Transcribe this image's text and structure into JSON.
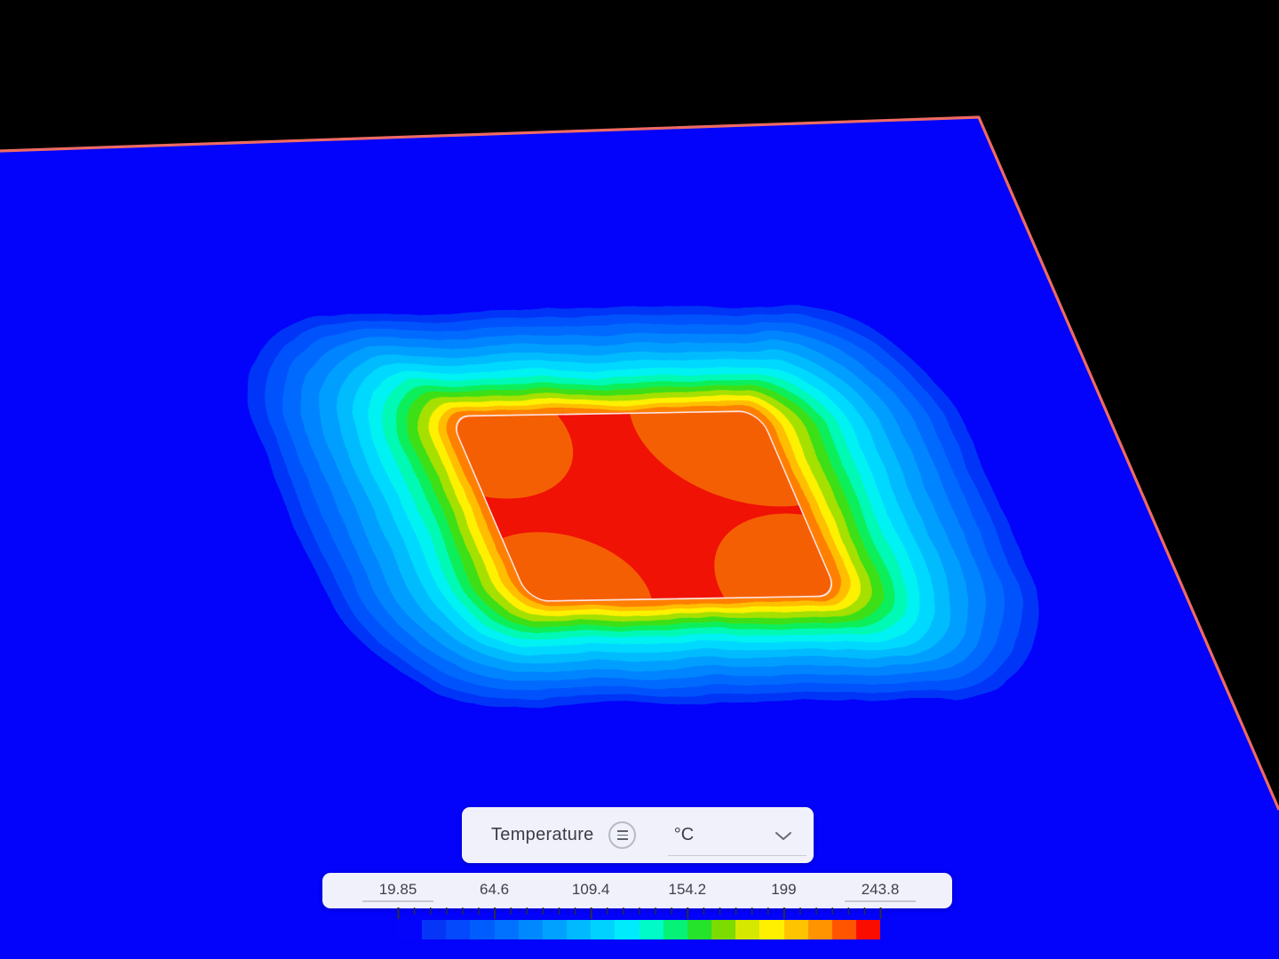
{
  "scene": {
    "background": "#000000",
    "plate_color": "#0302fa",
    "edge_color": "#ee6b63"
  },
  "legend": {
    "field_label": "Temperature",
    "unit_value": "°C",
    "menu_icon": "hamburger-circle-icon",
    "unit_chevron_icon": "chevron-down-icon"
  },
  "colorbar": {
    "tick_labels": [
      "19.85",
      "64.6",
      "109.4",
      "154.2",
      "199",
      "243.8"
    ],
    "editable_tick_indexes": [
      0,
      5
    ],
    "minors_per_interval": 5,
    "tick_color": "#2e2f38",
    "band_colors": [
      "#0404fa",
      "#0536f7",
      "#0449fb",
      "#005dfd",
      "#0072ff",
      "#0089ff",
      "#00a1ff",
      "#00baff",
      "#00d2ff",
      "#00ecfd",
      "#00fbc8",
      "#06f276",
      "#25e32b",
      "#7edb00",
      "#d6e800",
      "#fff000",
      "#ffc400",
      "#ff9300",
      "#ff5500",
      "#fb0c00"
    ],
    "value_min": 19.85,
    "value_max": 243.8,
    "unit": "°C"
  },
  "heatmap": {
    "description": "temperature-contour-blob",
    "rings": [
      {
        "color": "#0536f7",
        "pv": 116,
        "ph": 224
      },
      {
        "color": "#0453fc",
        "pv": 107,
        "ph": 206
      },
      {
        "color": "#006bff",
        "pv": 97,
        "ph": 187
      },
      {
        "color": "#0084ff",
        "pv": 87,
        "ph": 168
      },
      {
        "color": "#009fff",
        "pv": 77,
        "ph": 149
      },
      {
        "color": "#00bcff",
        "pv": 67,
        "ph": 130
      },
      {
        "color": "#00d9ff",
        "pv": 58,
        "ph": 112
      },
      {
        "color": "#00f2f2",
        "pv": 49,
        "ph": 95
      },
      {
        "color": "#00f9b4",
        "pv": 41,
        "ph": 80
      },
      {
        "color": "#0aef5a",
        "pv": 34,
        "ph": 66
      },
      {
        "color": "#3cdf12",
        "pv": 28,
        "ph": 54
      },
      {
        "color": "#a5e000",
        "pv": 22,
        "ph": 42
      },
      {
        "color": "#fdf000",
        "pv": 16,
        "ph": 30
      },
      {
        "color": "#ffbe00",
        "pv": 10,
        "ph": 19
      },
      {
        "color": "#ff8000",
        "pv": 5,
        "ph": 9
      }
    ],
    "core": {
      "fill": "#f01205",
      "patch_fill": "#f55f04",
      "outline": "#ffe3de"
    }
  }
}
